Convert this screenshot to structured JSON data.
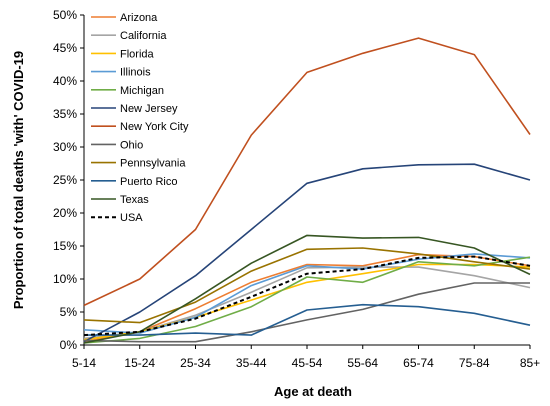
{
  "chart_data": {
    "type": "line",
    "xlabel": "Age at death",
    "ylabel": "Proportion of total deaths 'with' COVID-19",
    "categories": [
      "5-14",
      "15-24",
      "25-34",
      "35-44",
      "45-54",
      "55-64",
      "65-74",
      "75-84",
      "85+"
    ],
    "y_ticks": [
      "0%",
      "5%",
      "10%",
      "15%",
      "20%",
      "25%",
      "30%",
      "35%",
      "40%",
      "45%",
      "50%"
    ],
    "ylim": [
      0,
      50
    ],
    "grid": false,
    "legend_position": "top-left",
    "series": [
      {
        "name": "Arizona",
        "color": "#ED7D31",
        "dashed": false,
        "values": [
          0.5,
          2.0,
          5.5,
          9.5,
          12.2,
          12.0,
          13.7,
          13.4,
          12.0
        ]
      },
      {
        "name": "California",
        "color": "#A5A5A5",
        "dashed": false,
        "values": [
          1.0,
          2.0,
          4.5,
          8.0,
          11.7,
          11.8,
          11.8,
          10.5,
          8.7
        ]
      },
      {
        "name": "Florida",
        "color": "#FFC000",
        "dashed": false,
        "values": [
          0.8,
          2.0,
          4.2,
          6.8,
          9.5,
          10.8,
          12.2,
          12.2,
          11.8
        ]
      },
      {
        "name": "Illinois",
        "color": "#5B9BD5",
        "dashed": false,
        "values": [
          2.3,
          1.8,
          4.2,
          9.0,
          12.0,
          11.5,
          13.0,
          13.8,
          13.2
        ]
      },
      {
        "name": "Michigan",
        "color": "#70AD47",
        "dashed": false,
        "values": [
          0.3,
          1.0,
          2.8,
          5.8,
          10.3,
          9.5,
          12.6,
          12.0,
          13.3
        ]
      },
      {
        "name": "New Jersey",
        "color": "#264478",
        "dashed": false,
        "values": [
          0.5,
          5.0,
          10.5,
          17.5,
          24.5,
          26.7,
          27.3,
          27.4,
          25.0
        ]
      },
      {
        "name": "New York City",
        "color": "#C0501F",
        "dashed": false,
        "values": [
          6.0,
          10.0,
          17.5,
          31.8,
          41.3,
          44.2,
          46.5,
          44.0,
          31.9
        ]
      },
      {
        "name": "Ohio",
        "color": "#636363",
        "dashed": false,
        "values": [
          0.7,
          0.5,
          0.5,
          2.0,
          3.8,
          5.4,
          7.7,
          9.4,
          9.4
        ]
      },
      {
        "name": "Pennsylvania",
        "color": "#997300",
        "dashed": false,
        "values": [
          3.8,
          3.4,
          6.5,
          11.2,
          14.5,
          14.7,
          13.8,
          12.6,
          11.5
        ]
      },
      {
        "name": "Puerto Rico",
        "color": "#255E91",
        "dashed": false,
        "values": [
          1.5,
          1.5,
          1.8,
          1.5,
          5.3,
          6.1,
          5.8,
          4.8,
          3.0
        ]
      },
      {
        "name": "Texas",
        "color": "#375623",
        "dashed": false,
        "values": [
          0.3,
          2.0,
          7.0,
          12.4,
          16.6,
          16.2,
          16.3,
          14.7,
          10.7
        ]
      },
      {
        "name": "USA",
        "color": "#000000",
        "dashed": true,
        "values": [
          1.5,
          2.0,
          4.0,
          7.3,
          10.8,
          11.5,
          13.2,
          13.4,
          12.0
        ]
      }
    ]
  }
}
